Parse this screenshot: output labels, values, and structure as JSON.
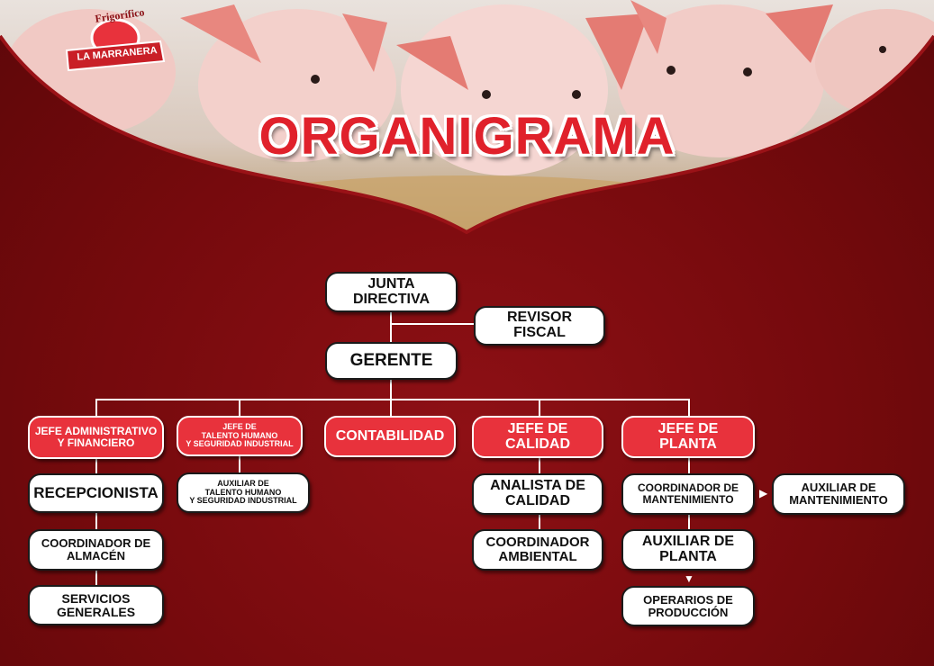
{
  "header": {
    "title": "ORGANIGRAMA",
    "logo": {
      "top_text": "Frigorífico",
      "name": "LA MARRANERA"
    }
  },
  "colors": {
    "background": "#7c0a0e",
    "accent": "#e8323c",
    "title": "#e0212b",
    "box": "#ffffff"
  },
  "org": {
    "junta": [
      "JUNTA",
      "DIRECTIVA"
    ],
    "revisor": [
      "REVISOR",
      "FISCAL"
    ],
    "gerente": [
      "GERENTE"
    ],
    "jefe_admin": [
      "JEFE ADMINISTRATIVO",
      "Y FINANCIERO"
    ],
    "jefe_th": [
      "JEFE DE",
      "TALENTO HUMANO",
      "Y SEGURIDAD INDUSTRIAL"
    ],
    "contabilidad": [
      "CONTABILIDAD"
    ],
    "jefe_calidad": [
      "JEFE DE",
      "CALIDAD"
    ],
    "jefe_planta": [
      "JEFE DE",
      "PLANTA"
    ],
    "recepcionista": [
      "RECEPCIONISTA"
    ],
    "coord_almacen": [
      "COORDINADOR DE",
      "ALMACÉN"
    ],
    "servicios": [
      "SERVICIOS",
      "GENERALES"
    ],
    "aux_th": [
      "AUXILIAR DE",
      "TALENTO HUMANO",
      "Y SEGURIDAD INDUSTRIAL"
    ],
    "analista": [
      "ANALISTA DE",
      "CALIDAD"
    ],
    "coord_ambiental": [
      "COORDINADOR",
      "AMBIENTAL"
    ],
    "coord_mant": [
      "COORDINADOR DE",
      "MANTENIMIENTO"
    ],
    "aux_mant": [
      "AUXILIAR DE",
      "MANTENIMIENTO"
    ],
    "aux_planta": [
      "AUXILIAR DE",
      "PLANTA"
    ],
    "operarios": [
      "OPERARIOS DE",
      "PRODUCCIÓN"
    ]
  }
}
